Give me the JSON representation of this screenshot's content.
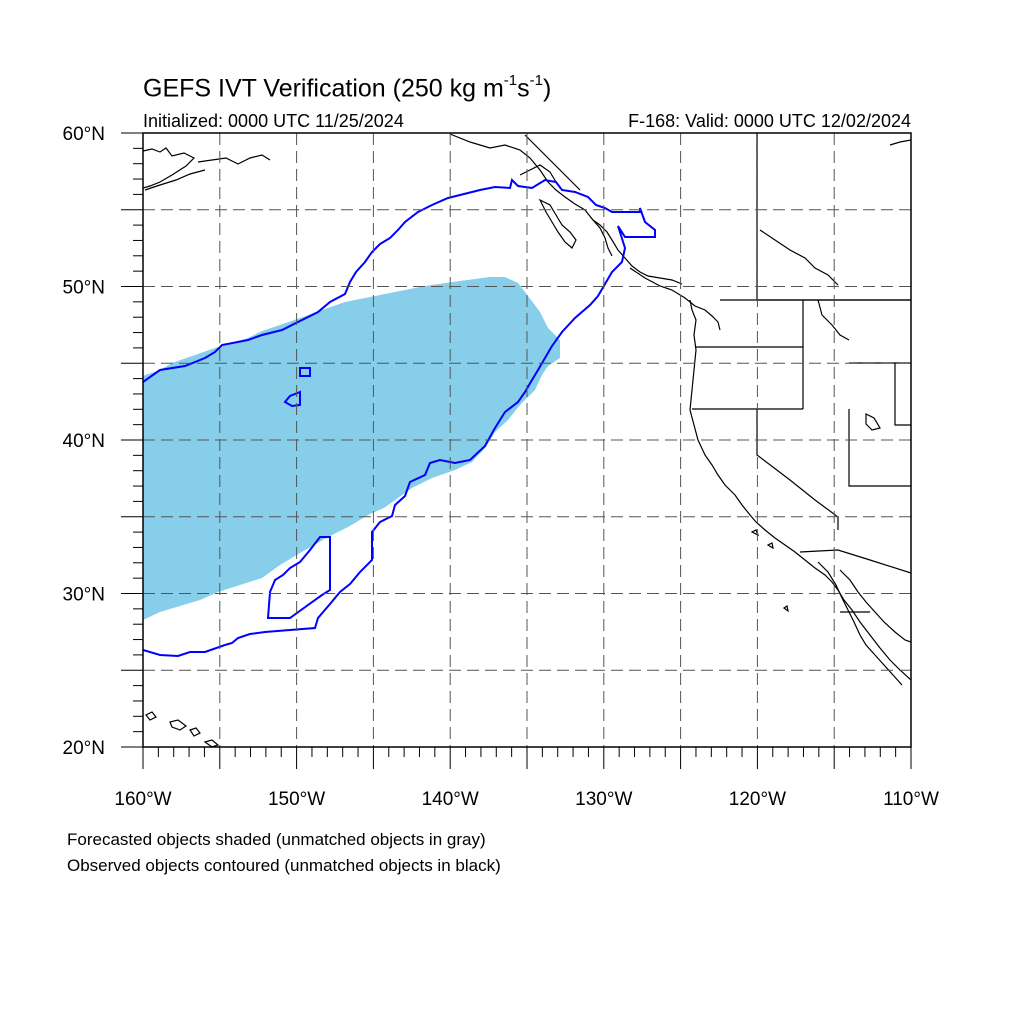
{
  "header": {
    "title_prefix": "GEFS IVT Verification (250 kg m",
    "title_sup1": "-1",
    "title_mid": "s",
    "title_sup2": "-1",
    "title_suffix": ")",
    "initialized": "Initialized: 0000 UTC 11/25/2024",
    "valid": "F-168: Valid: 0000 UTC 12/02/2024"
  },
  "map": {
    "projection": "cylindrical-equidistant",
    "lon_range": [
      -160,
      -110
    ],
    "lat_range": [
      20,
      60
    ],
    "grid": "dashed every 5 degrees",
    "lat_labels": [
      "20°N",
      "30°N",
      "40°N",
      "50°N",
      "60°N"
    ],
    "lon_labels": [
      "160°W",
      "150°W",
      "140°W",
      "130°W",
      "120°W",
      "110°W"
    ],
    "colors": {
      "forecast_fill": "#87ceeb",
      "observed_contour": "#0000ff",
      "coastline": "#000000",
      "grid": "#555555"
    }
  },
  "legend": {
    "line1": "Forecasted objects shaded (unmatched objects in gray)",
    "line2": "Observed objects contoured (unmatched objects in black)"
  }
}
